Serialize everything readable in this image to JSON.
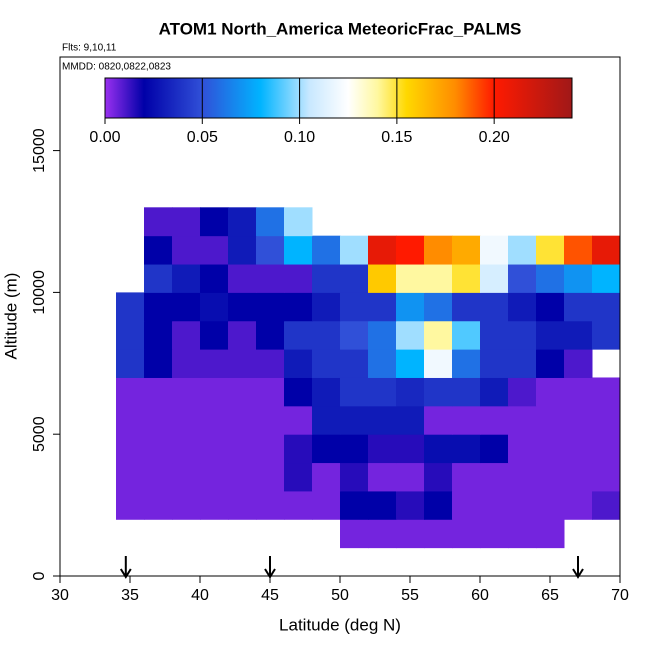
{
  "chart_data": {
    "type": "heatmap",
    "title": "ATOM1 North_America MeteoricFrac_PALMS",
    "flights_note": "Flts: 9,10,11",
    "dates_note": "MMDD: 0820,0822,0823",
    "xlabel": "Latitude (deg N)",
    "ylabel": "Altitude (m)",
    "xlim": [
      30,
      70
    ],
    "ylim": [
      0,
      18300
    ],
    "xticks": [
      30,
      35,
      40,
      45,
      50,
      55,
      60,
      65,
      70
    ],
    "yticks": [
      0,
      5000,
      10000,
      15000
    ],
    "x_edges": [
      34,
      36,
      38,
      40,
      42,
      44,
      46,
      48,
      50,
      52,
      54,
      56,
      58,
      60,
      62,
      64,
      66,
      68,
      70
    ],
    "y_edges": [
      0,
      1000,
      2000,
      3000,
      4000,
      5000,
      6000,
      7000,
      8000,
      9000,
      10000,
      11000,
      12000,
      13000
    ],
    "values": [
      [
        null,
        null,
        null,
        null,
        null,
        null,
        null,
        null,
        null,
        null,
        null,
        null,
        null,
        null,
        null,
        null,
        null,
        null
      ],
      [
        null,
        null,
        null,
        null,
        null,
        null,
        null,
        null,
        0.005,
        0.005,
        0.005,
        0.005,
        0.005,
        0.005,
        0.005,
        0.005,
        null,
        null
      ],
      [
        0.005,
        0.005,
        0.005,
        0.005,
        0.005,
        0.005,
        0.005,
        0.005,
        0.02,
        0.02,
        0.015,
        0.02,
        0.005,
        0.005,
        0.005,
        0.005,
        0.005,
        0.01
      ],
      [
        0.005,
        0.005,
        0.005,
        0.005,
        0.005,
        0.005,
        0.015,
        0.005,
        0.015,
        0.005,
        0.005,
        0.015,
        0.005,
        0.005,
        0.005,
        0.005,
        0.005,
        0.005
      ],
      [
        0.005,
        0.005,
        0.005,
        0.005,
        0.005,
        0.005,
        0.015,
        0.02,
        0.02,
        0.015,
        0.015,
        0.025,
        0.025,
        0.02,
        0.005,
        0.005,
        0.005,
        0.005
      ],
      [
        0.005,
        0.005,
        0.005,
        0.005,
        0.005,
        0.005,
        0.005,
        0.03,
        0.03,
        0.03,
        0.03,
        0.005,
        0.005,
        0.005,
        0.005,
        0.005,
        0.005,
        0.005
      ],
      [
        0.005,
        0.005,
        0.005,
        0.005,
        0.005,
        0.005,
        0.02,
        0.03,
        0.04,
        0.04,
        0.035,
        0.04,
        0.04,
        0.03,
        0.01,
        0.005,
        0.005,
        0.005
      ],
      [
        0.04,
        0.02,
        0.01,
        0.01,
        0.01,
        0.01,
        0.03,
        0.04,
        0.04,
        0.06,
        0.08,
        0.12,
        0.06,
        0.04,
        0.04,
        0.02,
        0.01,
        null
      ],
      [
        0.04,
        0.02,
        0.01,
        0.02,
        0.01,
        0.02,
        0.04,
        0.04,
        0.05,
        0.06,
        0.1,
        0.14,
        0.09,
        0.04,
        0.04,
        0.03,
        0.03,
        0.04
      ],
      [
        0.04,
        0.02,
        0.02,
        0.025,
        0.02,
        0.02,
        0.02,
        0.03,
        0.04,
        0.04,
        0.07,
        0.06,
        0.04,
        0.04,
        0.03,
        0.02,
        0.04,
        0.04
      ],
      [
        null,
        0.04,
        0.03,
        0.02,
        0.01,
        0.01,
        0.01,
        0.04,
        0.04,
        0.16,
        0.14,
        0.14,
        0.15,
        0.11,
        0.05,
        0.06,
        0.07,
        0.08
      ],
      [
        null,
        0.02,
        0.01,
        0.01,
        0.03,
        0.05,
        0.08,
        0.06,
        0.1,
        0.21,
        0.2,
        0.18,
        0.17,
        0.12,
        0.1,
        0.15,
        0.19,
        0.21
      ],
      [
        null,
        0.01,
        0.01,
        0.02,
        0.03,
        0.06,
        0.1,
        null,
        null,
        null,
        null,
        null,
        null,
        null,
        null,
        null,
        null,
        null
      ]
    ],
    "colorbar_lim": [
      0,
      0.24
    ],
    "colorbar_ticks": [
      {
        "value": 0,
        "label": "0.00"
      },
      {
        "value": 0.05,
        "label": "0.05"
      },
      {
        "value": 0.1,
        "label": "0.10"
      },
      {
        "value": 0.15,
        "label": "0.15"
      },
      {
        "value": 0.2,
        "label": "0.20"
      }
    ],
    "colorscale": [
      [
        0,
        "#9a30f0"
      ],
      [
        0.02,
        "#0000a8"
      ],
      [
        0.05,
        "#3050d8"
      ],
      [
        0.08,
        "#00b4ff"
      ],
      [
        0.105,
        "#c8e8ff"
      ],
      [
        0.125,
        "#ffffff"
      ],
      [
        0.14,
        "#fff8a0"
      ],
      [
        0.155,
        "#ffd800"
      ],
      [
        0.18,
        "#ff8c00"
      ],
      [
        0.2,
        "#ff1a00"
      ],
      [
        0.24,
        "#a01818"
      ]
    ],
    "arrows": [
      34.7,
      45,
      67
    ]
  }
}
